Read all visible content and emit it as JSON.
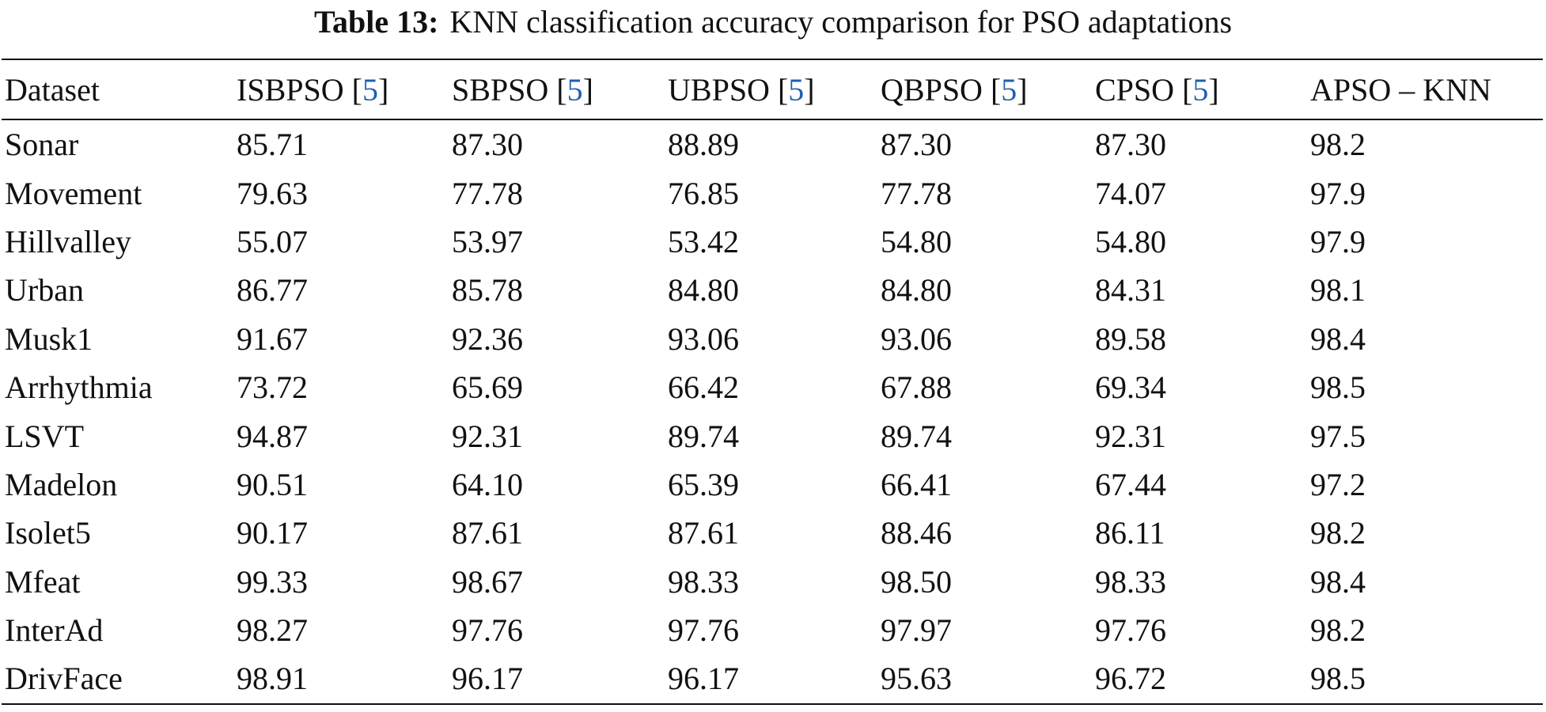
{
  "caption": {
    "label": "Table 13:",
    "text": "KNN classification accuracy comparison for PSO adaptations"
  },
  "table": {
    "headers": [
      {
        "name": "Dataset"
      },
      {
        "name": "ISBPSO",
        "open": "[",
        "ref": "5",
        "close": "]"
      },
      {
        "name": "SBPSO",
        "open": "[",
        "ref": "5",
        "close": "]"
      },
      {
        "name": "UBPSO",
        "open": "[",
        "ref": "5",
        "close": "]"
      },
      {
        "name": "QBPSO",
        "open": "[",
        "ref": "5",
        "close": "]"
      },
      {
        "name": "CPSO",
        "open": "[",
        "ref": "5",
        "close": "]"
      },
      {
        "name": "APSO – KNN"
      }
    ],
    "rows": [
      [
        "Sonar",
        "85.71",
        "87.30",
        "88.89",
        "87.30",
        "87.30",
        "98.2"
      ],
      [
        "Movement",
        "79.63",
        "77.78",
        "76.85",
        "77.78",
        "74.07",
        "97.9"
      ],
      [
        "Hillvalley",
        "55.07",
        "53.97",
        "53.42",
        "54.80",
        "54.80",
        "97.9"
      ],
      [
        "Urban",
        "86.77",
        "85.78",
        "84.80",
        "84.80",
        "84.31",
        "98.1"
      ],
      [
        "Musk1",
        "91.67",
        "92.36",
        "93.06",
        "93.06",
        "89.58",
        "98.4"
      ],
      [
        "Arrhythmia",
        "73.72",
        "65.69",
        "66.42",
        "67.88",
        "69.34",
        "98.5"
      ],
      [
        "LSVT",
        "94.87",
        "92.31",
        "89.74",
        "89.74",
        "92.31",
        "97.5"
      ],
      [
        "Madelon",
        "90.51",
        "64.10",
        "65.39",
        "66.41",
        "67.44",
        "97.2"
      ],
      [
        "Isolet5",
        "90.17",
        "87.61",
        "87.61",
        "88.46",
        "86.11",
        "98.2"
      ],
      [
        "Mfeat",
        "99.33",
        "98.67",
        "98.33",
        "98.50",
        "98.33",
        "98.4"
      ],
      [
        "InterAd",
        "98.27",
        "97.76",
        "97.76",
        "97.97",
        "97.76",
        "98.2"
      ],
      [
        "DrivFace",
        "98.91",
        "96.17",
        "96.17",
        "95.63",
        "96.72",
        "98.5"
      ]
    ]
  }
}
